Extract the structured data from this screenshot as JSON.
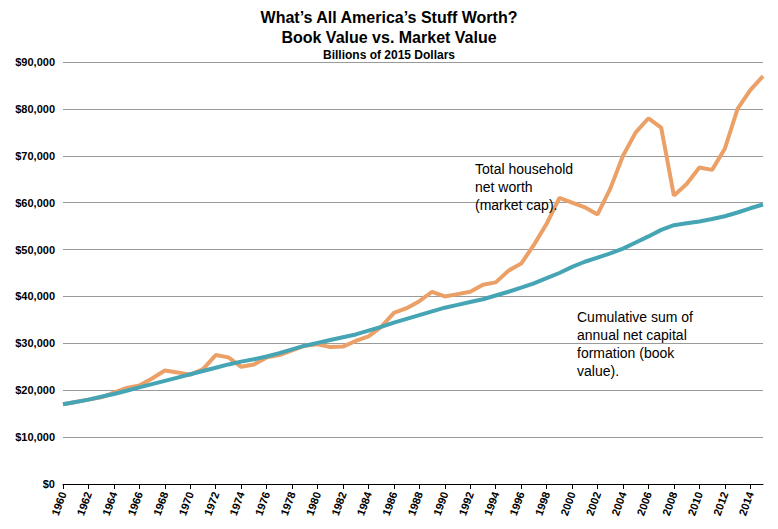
{
  "chart_data": {
    "type": "line",
    "title": "What’s All America’s Stuff Worth?\nBook Value vs. Market Value",
    "subtitle": "Billions of 2015 Dollars",
    "annotations": [
      "Total household\nnet worth\n(market cap).",
      "Cumulative sum of\nannual net capital\nformation (book\nvalue)."
    ],
    "x": [
      1960,
      1961,
      1962,
      1963,
      1964,
      1965,
      1966,
      1967,
      1968,
      1969,
      1970,
      1971,
      1972,
      1973,
      1974,
      1975,
      1976,
      1977,
      1978,
      1979,
      1980,
      1981,
      1982,
      1983,
      1984,
      1985,
      1986,
      1987,
      1988,
      1989,
      1990,
      1991,
      1992,
      1993,
      1994,
      1995,
      1996,
      1997,
      1998,
      1999,
      2000,
      2001,
      2002,
      2003,
      2004,
      2005,
      2006,
      2007,
      2008,
      2009,
      2010,
      2011,
      2012,
      2013,
      2014,
      2015
    ],
    "series": [
      {
        "color": "#eba067",
        "values": [
          17000,
          17500,
          18000,
          18500,
          19500,
          20500,
          21000,
          22500,
          24200,
          23800,
          23300,
          24500,
          27500,
          27000,
          25000,
          25500,
          27000,
          27500,
          28500,
          29500,
          29800,
          29200,
          29300,
          30500,
          31500,
          33500,
          36500,
          37500,
          39000,
          41000,
          40000,
          40500,
          41000,
          42500,
          43000,
          45500,
          47000,
          51000,
          55500,
          61000,
          60000,
          59000,
          57500,
          63000,
          70000,
          75000,
          78000,
          76000,
          61500,
          64000,
          67500,
          67000,
          71500,
          80000,
          84000,
          87000
        ]
      },
      {
        "color": "#46a5b5",
        "values": [
          17000,
          17500,
          18000,
          18600,
          19200,
          19900,
          20600,
          21300,
          22000,
          22700,
          23400,
          24100,
          24800,
          25500,
          26100,
          26600,
          27200,
          27900,
          28700,
          29500,
          30100,
          30700,
          31300,
          31900,
          32700,
          33500,
          34400,
          35200,
          36000,
          36800,
          37600,
          38200,
          38800,
          39400,
          40200,
          41000,
          41900,
          42800,
          43900,
          45000,
          46300,
          47400,
          48300,
          49200,
          50200,
          51500,
          52800,
          54200,
          55200,
          55600,
          56000,
          56500,
          57100,
          57900,
          58800,
          59600
        ]
      }
    ],
    "xlim": [
      1960,
      2015
    ],
    "xticks": [
      1960,
      1962,
      1964,
      1966,
      1968,
      1970,
      1972,
      1974,
      1976,
      1978,
      1980,
      1982,
      1984,
      1986,
      1988,
      1990,
      1992,
      1994,
      1996,
      1998,
      2000,
      2002,
      2004,
      2006,
      2008,
      2010,
      2012,
      2014
    ],
    "ylim": [
      0,
      90000
    ],
    "yticks": [
      {
        "value": 0,
        "label": "$0"
      },
      {
        "value": 10000,
        "label": "$10,000"
      },
      {
        "value": 20000,
        "label": "$20,000"
      },
      {
        "value": 30000,
        "label": "$30,000"
      },
      {
        "value": 40000,
        "label": "$40,000"
      },
      {
        "value": 50000,
        "label": "$50,000"
      },
      {
        "value": 60000,
        "label": "$60,000"
      },
      {
        "value": 70000,
        "label": "$70,000"
      },
      {
        "value": 80000,
        "label": "$80,000"
      },
      {
        "value": 90000,
        "label": "$90,000"
      }
    ],
    "grid": true
  }
}
